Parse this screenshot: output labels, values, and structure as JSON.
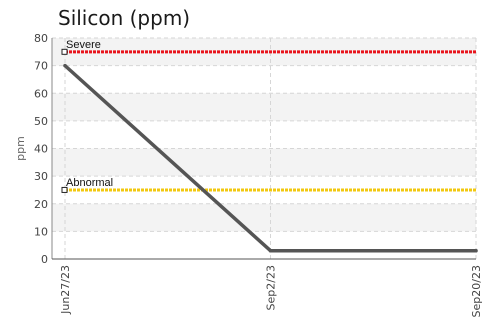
{
  "chart_data": {
    "type": "line",
    "title": "Silicon (ppm)",
    "xlabel": "",
    "ylabel": "ppm",
    "ylim": [
      0,
      80
    ],
    "yticks": [
      0,
      10,
      20,
      30,
      40,
      50,
      60,
      70,
      80
    ],
    "categories": [
      "Jun27/23",
      "Sep2/23",
      "Sep20/23"
    ],
    "series": [
      {
        "values": [
          70,
          3,
          3
        ],
        "color": "#555555"
      }
    ],
    "thresholds": [
      {
        "label": "Severe",
        "value": 75,
        "color": "#e8141c"
      },
      {
        "label": "Abnormal",
        "value": 25,
        "color": "#f2c80f"
      }
    ],
    "grid": true,
    "legend": "none"
  }
}
